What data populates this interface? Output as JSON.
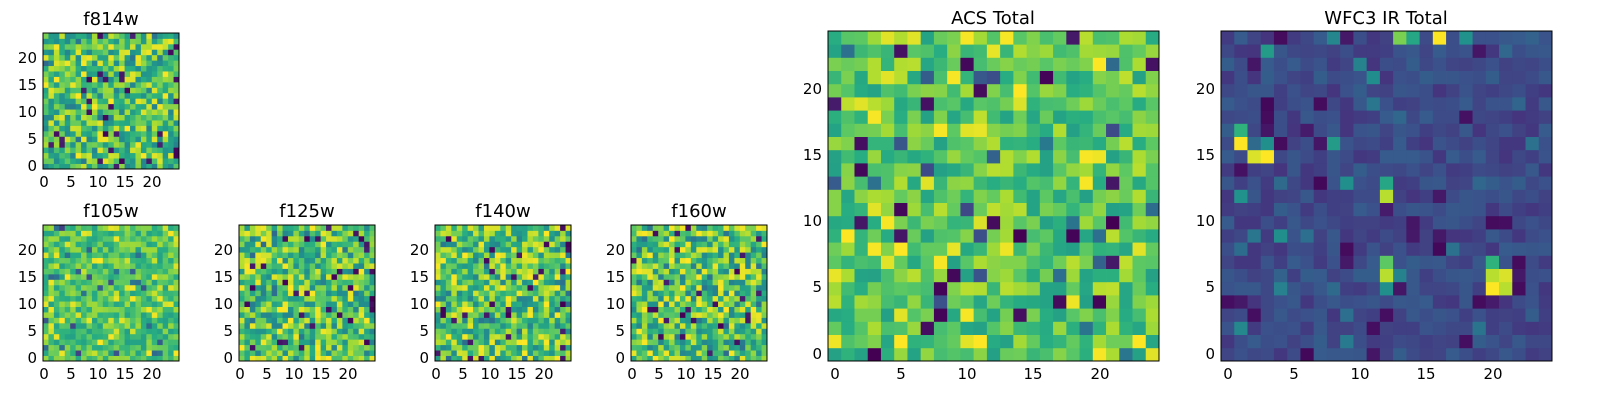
{
  "chart_data": [
    {
      "id": "f814w",
      "type": "heatmap",
      "title": "f814w",
      "grid_size": 25,
      "xticks": [
        "0",
        "5",
        "10",
        "15",
        "20"
      ],
      "yticks": [
        "0",
        "5",
        "10",
        "15",
        "20"
      ],
      "xlim": [
        0,
        25
      ],
      "ylim": [
        0,
        25
      ],
      "colormap": "viridis",
      "seed": 814,
      "profile": "optical",
      "values": []
    },
    {
      "id": "f105w",
      "type": "heatmap",
      "title": "f105w",
      "grid_size": 25,
      "xticks": [
        "0",
        "5",
        "10",
        "15",
        "20"
      ],
      "yticks": [
        "0",
        "5",
        "10",
        "15",
        "20"
      ],
      "xlim": [
        0,
        25
      ],
      "ylim": [
        0,
        25
      ],
      "colormap": "viridis",
      "seed": 105,
      "profile": "smooth",
      "values": []
    },
    {
      "id": "f125w",
      "type": "heatmap",
      "title": "f125w",
      "grid_size": 25,
      "xticks": [
        "0",
        "5",
        "10",
        "15",
        "20"
      ],
      "yticks": [
        "0",
        "5",
        "10",
        "15",
        "20"
      ],
      "xlim": [
        0,
        25
      ],
      "ylim": [
        0,
        25
      ],
      "colormap": "viridis",
      "seed": 125,
      "profile": "optical",
      "values": []
    },
    {
      "id": "f140w",
      "type": "heatmap",
      "title": "f140w",
      "grid_size": 25,
      "xticks": [
        "0",
        "5",
        "10",
        "15",
        "20"
      ],
      "yticks": [
        "0",
        "5",
        "10",
        "15",
        "20"
      ],
      "xlim": [
        0,
        25
      ],
      "ylim": [
        0,
        25
      ],
      "colormap": "viridis",
      "seed": 140,
      "profile": "optical",
      "values": []
    },
    {
      "id": "f160w",
      "type": "heatmap",
      "title": "f160w",
      "grid_size": 25,
      "xticks": [
        "0",
        "5",
        "10",
        "15",
        "20"
      ],
      "yticks": [
        "0",
        "5",
        "10",
        "15",
        "20"
      ],
      "xlim": [
        0,
        25
      ],
      "ylim": [
        0,
        25
      ],
      "colormap": "viridis",
      "seed": 160,
      "profile": "optical",
      "values": []
    },
    {
      "id": "acs_total",
      "type": "heatmap",
      "title": "ACS Total",
      "grid_size": 25,
      "xticks": [
        "0",
        "5",
        "10",
        "15",
        "20"
      ],
      "yticks": [
        "0",
        "5",
        "10",
        "15",
        "20"
      ],
      "xlim": [
        0,
        25
      ],
      "ylim": [
        0,
        25
      ],
      "colormap": "viridis",
      "seed": 7,
      "profile": "total",
      "values": []
    },
    {
      "id": "wfc3_ir_total",
      "type": "heatmap",
      "title": "WFC3 IR Total",
      "grid_size": 25,
      "xticks": [
        "0",
        "5",
        "10",
        "15",
        "20"
      ],
      "yticks": [
        "0",
        "5",
        "10",
        "15",
        "20"
      ],
      "xlim": [
        0,
        25
      ],
      "ylim": [
        0,
        25
      ],
      "colormap": "viridis",
      "seed": 33,
      "profile": "ir",
      "hotspots": [
        [
          1,
          17,
          0.65
        ],
        [
          1,
          16,
          1.0
        ],
        [
          2,
          15,
          0.95
        ],
        [
          3,
          15,
          1.0
        ],
        [
          12,
          12,
          0.9
        ],
        [
          12,
          13,
          0.6
        ],
        [
          12,
          7,
          0.75
        ],
        [
          12,
          6,
          0.9
        ],
        [
          20,
          7,
          0.65
        ],
        [
          20,
          6,
          0.9
        ],
        [
          21,
          6,
          0.95
        ],
        [
          20,
          5,
          1.0
        ],
        [
          21,
          5,
          0.9
        ],
        [
          3,
          23,
          0.55
        ],
        [
          16,
          24,
          1.0
        ],
        [
          13,
          24,
          0.8
        ],
        [
          14,
          24,
          0.6
        ],
        [
          4,
          9,
          0.5
        ],
        [
          9,
          13,
          0.5
        ],
        [
          8,
          16,
          0.55
        ],
        [
          12,
          5,
          0.5
        ]
      ],
      "values": []
    }
  ]
}
